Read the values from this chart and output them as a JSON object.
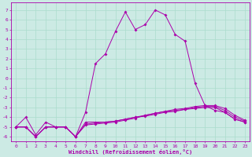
{
  "xlabel": "Windchill (Refroidissement éolien,°C)",
  "x": [
    0,
    1,
    2,
    3,
    4,
    5,
    6,
    7,
    8,
    9,
    10,
    11,
    12,
    13,
    14,
    15,
    16,
    17,
    18,
    19,
    20,
    21,
    22,
    23
  ],
  "line1": [
    -5.0,
    -4.0,
    -5.8,
    -4.5,
    -5.0,
    -5.0,
    -6.0,
    -3.5,
    1.5,
    2.5,
    4.8,
    6.8,
    5.0,
    5.5,
    7.0,
    6.5,
    4.5,
    3.8,
    -0.5,
    -2.8,
    -3.3,
    -3.5,
    -4.2,
    -4.5
  ],
  "line2": [
    -5.0,
    -5.0,
    -6.0,
    -5.0,
    -5.0,
    -5.0,
    -6.0,
    -4.5,
    -4.5,
    -4.5,
    -4.4,
    -4.2,
    -4.0,
    -3.9,
    -3.7,
    -3.5,
    -3.4,
    -3.2,
    -3.1,
    -3.0,
    -3.0,
    -3.5,
    -4.2,
    -4.5
  ],
  "line3": [
    -5.0,
    -5.0,
    -6.0,
    -5.0,
    -5.0,
    -5.0,
    -6.0,
    -4.7,
    -4.6,
    -4.5,
    -4.4,
    -4.2,
    -4.0,
    -3.8,
    -3.6,
    -3.4,
    -3.3,
    -3.2,
    -3.0,
    -2.9,
    -2.9,
    -3.3,
    -4.0,
    -4.4
  ],
  "line4": [
    -5.0,
    -5.0,
    -6.0,
    -5.0,
    -5.0,
    -5.0,
    -6.0,
    -4.8,
    -4.7,
    -4.6,
    -4.5,
    -4.3,
    -4.1,
    -3.8,
    -3.6,
    -3.4,
    -3.2,
    -3.1,
    -2.9,
    -2.8,
    -2.8,
    -3.1,
    -3.8,
    -4.3
  ],
  "ylim": [
    -6.5,
    7.8
  ],
  "yticks": [
    -6,
    -5,
    -4,
    -3,
    -2,
    -1,
    0,
    1,
    2,
    3,
    4,
    5,
    6,
    7
  ],
  "bg_color": "#cceae4",
  "line_color": "#aa00aa",
  "grid_color": "#aaddcc",
  "marker": "D",
  "markersize": 2,
  "linewidth": 0.7
}
